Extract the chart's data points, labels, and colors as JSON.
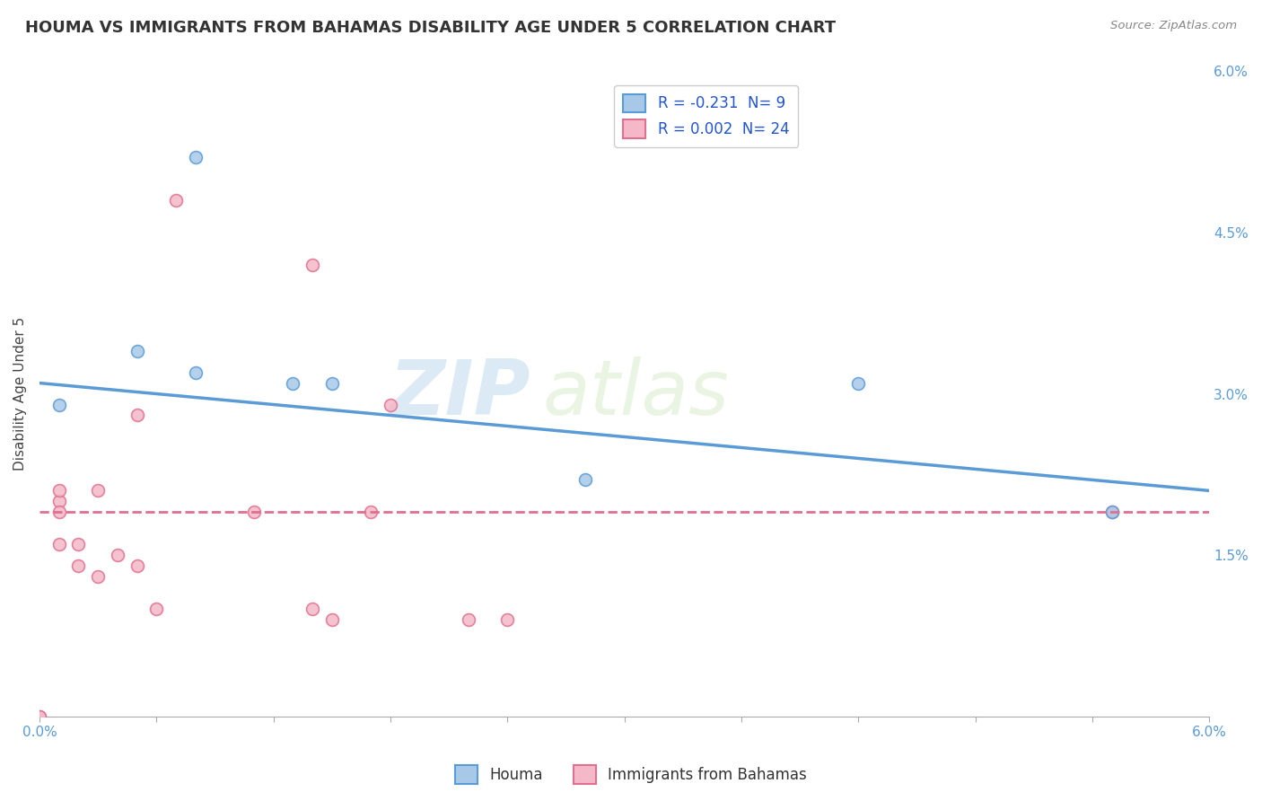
{
  "title": "HOUMA VS IMMIGRANTS FROM BAHAMAS DISABILITY AGE UNDER 5 CORRELATION CHART",
  "source_text": "Source: ZipAtlas.com",
  "ylabel": "Disability Age Under 5",
  "xlim": [
    0.0,
    0.06
  ],
  "ylim": [
    0.0,
    0.06
  ],
  "xtick_vals": [
    0.0,
    0.006,
    0.012,
    0.018,
    0.024,
    0.03,
    0.036,
    0.042,
    0.048,
    0.054,
    0.06
  ],
  "xtick_labels_sparse": {
    "0": "0.0%",
    "10": "6.0%"
  },
  "ytick_right_vals": [
    0.015,
    0.03,
    0.045,
    0.06
  ],
  "ytick_right_labels": [
    "1.5%",
    "3.0%",
    "4.5%",
    "6.0%"
  ],
  "houma_color": "#a8c8e8",
  "houma_edge": "#5b9bd5",
  "immigrants_color": "#f4b8c8",
  "immigrants_edge": "#e07090",
  "houma_r": -0.231,
  "houma_n": 9,
  "immigrants_r": 0.002,
  "immigrants_n": 24,
  "houma_points_x": [
    0.008,
    0.005,
    0.008,
    0.013,
    0.001,
    0.015,
    0.028,
    0.042,
    0.055
  ],
  "houma_points_y": [
    0.052,
    0.034,
    0.032,
    0.031,
    0.029,
    0.031,
    0.022,
    0.031,
    0.019
  ],
  "immigrants_points_x": [
    0.007,
    0.014,
    0.018,
    0.005,
    0.003,
    0.001,
    0.001,
    0.001,
    0.002,
    0.002,
    0.003,
    0.0,
    0.0,
    0.001,
    0.004,
    0.005,
    0.006,
    0.014,
    0.015,
    0.022,
    0.024,
    0.011,
    0.017,
    0.055
  ],
  "immigrants_points_y": [
    0.048,
    0.042,
    0.029,
    0.028,
    0.021,
    0.02,
    0.019,
    0.016,
    0.016,
    0.014,
    0.013,
    0.0,
    0.0,
    0.021,
    0.015,
    0.014,
    0.01,
    0.01,
    0.009,
    0.009,
    0.009,
    0.019,
    0.019,
    0.019
  ],
  "houma_trend_x": [
    0.0,
    0.06
  ],
  "houma_trend_y": [
    0.031,
    0.021
  ],
  "immigrants_trend_x": [
    0.0,
    0.06
  ],
  "immigrants_trend_y": [
    0.019,
    0.019
  ],
  "watermark_zip": "ZIP",
  "watermark_atlas": "atlas",
  "legend_label_houma": "Houma",
  "legend_label_immigrants": "Immigrants from Bahamas",
  "background_color": "#ffffff",
  "grid_color": "#cccccc",
  "marker_size": 100
}
